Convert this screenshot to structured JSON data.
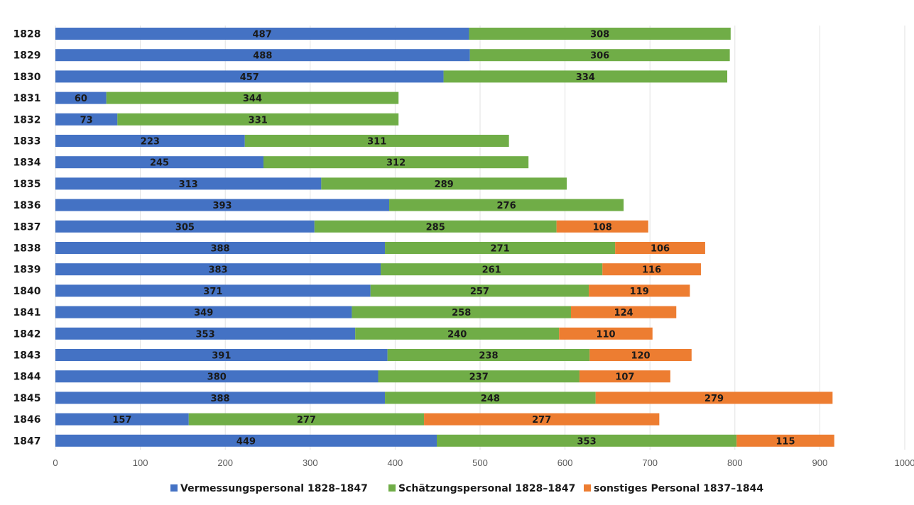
{
  "chart_data": {
    "type": "bar",
    "orientation": "horizontal",
    "stacked": true,
    "categories": [
      "1828",
      "1829",
      "1830",
      "1831",
      "1832",
      "1833",
      "1834",
      "1835",
      "1836",
      "1837",
      "1838",
      "1839",
      "1840",
      "1841",
      "1842",
      "1843",
      "1844",
      "1845",
      "1846",
      "1847"
    ],
    "series": [
      {
        "name": "Vermessungspersonal 1828–1847",
        "color": "#4472c4",
        "values": [
          487,
          488,
          457,
          60,
          73,
          223,
          245,
          313,
          393,
          305,
          388,
          383,
          371,
          349,
          353,
          391,
          380,
          388,
          157,
          449
        ]
      },
      {
        "name": "Schätzungspersonal 1828–1847",
        "color": "#70ad47",
        "values": [
          308,
          306,
          334,
          344,
          331,
          311,
          312,
          289,
          276,
          285,
          271,
          261,
          257,
          258,
          240,
          238,
          237,
          248,
          277,
          353
        ]
      },
      {
        "name": "sonstiges Personal 1837–1844",
        "color": "#ed7d31",
        "values": [
          null,
          null,
          null,
          null,
          null,
          null,
          null,
          null,
          null,
          108,
          106,
          116,
          119,
          124,
          110,
          120,
          107,
          279,
          277,
          115
        ]
      }
    ],
    "xlim": [
      0,
      1000
    ],
    "xticks": [
      "0",
      "100",
      "200",
      "300",
      "400",
      "500",
      "600",
      "700",
      "800",
      "900",
      "1000"
    ],
    "grid": true,
    "legend_position": "bottom"
  }
}
